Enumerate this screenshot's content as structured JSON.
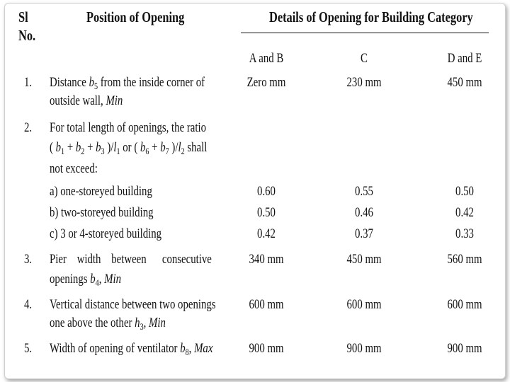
{
  "header": {
    "sl_line1": "Sl",
    "sl_line2": "No.",
    "position": "Position of Opening",
    "details": "Details of Opening for Building Category"
  },
  "categories": [
    "A and B",
    "C",
    "D and E"
  ],
  "rows": [
    {
      "no": "1.",
      "desc_line1": "Distance b5 from the inside corner of",
      "desc_line2": "outside wall, Min",
      "values": [
        "Zero mm",
        "230 mm",
        "450 mm"
      ]
    },
    {
      "no": "2.",
      "desc_line1": "For total length of openings, the ratio",
      "desc_line2": "( b1 + b2 + b3 )/l1 or ( b6 + b7 )/l2 shall",
      "desc_line3": "not exceed:",
      "sub_rows": [
        {
          "label": "a) one-storeyed building",
          "values": [
            "0.60",
            "0.55",
            "0.50"
          ]
        },
        {
          "label": "b) two-storeyed building",
          "values": [
            "0.50",
            "0.46",
            "0.42"
          ]
        },
        {
          "label": "c) 3 or 4-storeyed building",
          "values": [
            "0.42",
            "0.37",
            "0.33"
          ]
        }
      ]
    },
    {
      "no": "3.",
      "desc_line1": "Pier width between consecutive",
      "desc_line2": "openings b4, Min",
      "values": [
        "340 mm",
        "450 mm",
        "560 mm"
      ]
    },
    {
      "no": "4.",
      "desc_line1": "Vertical distance between two openings",
      "desc_line2": "one above the other h3, Min",
      "values": [
        "600 mm",
        "600 mm",
        "600 mm"
      ]
    },
    {
      "no": "5.",
      "desc_line1": "Width of opening of ventilator b8, Max",
      "values": [
        "900 mm",
        "900 mm",
        "900 mm"
      ]
    }
  ]
}
